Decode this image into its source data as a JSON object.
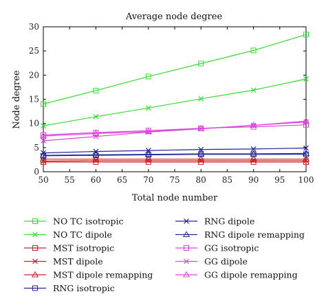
{
  "chart_data": {
    "type": "line",
    "title": "Average node degree",
    "xlabel": "Total node number",
    "ylabel": "Node degree",
    "xlim": [
      50,
      100
    ],
    "ylim": [
      0,
      30
    ],
    "xticks": [
      50,
      55,
      60,
      65,
      70,
      75,
      80,
      85,
      90,
      95,
      100
    ],
    "yticks": [
      0,
      5,
      10,
      15,
      20,
      25,
      30
    ],
    "grid": false,
    "legend_position": "bottom",
    "x": [
      50,
      60,
      70,
      80,
      90,
      100
    ],
    "series": [
      {
        "name": "NO TC isotropic",
        "color": "#33dd33",
        "marker": "square",
        "values": [
          14.0,
          16.8,
          19.7,
          22.4,
          25.1,
          28.4
        ]
      },
      {
        "name": "NO TC dipole",
        "color": "#33dd33",
        "marker": "x",
        "values": [
          9.5,
          11.4,
          13.2,
          15.1,
          16.9,
          19.2
        ]
      },
      {
        "name": "MST isotropic",
        "color": "#cc2222",
        "marker": "square",
        "values": [
          2.0,
          2.0,
          2.0,
          2.0,
          2.0,
          2.0
        ]
      },
      {
        "name": "MST dipole",
        "color": "#cc2222",
        "marker": "x",
        "values": [
          2.2,
          2.3,
          2.3,
          2.3,
          2.3,
          2.3
        ]
      },
      {
        "name": "MST dipole remapping",
        "color": "#cc2222",
        "marker": "triangle",
        "values": [
          2.6,
          2.6,
          2.6,
          2.6,
          2.6,
          2.6
        ]
      },
      {
        "name": "RNG isotropic",
        "color": "#222299",
        "marker": "square",
        "values": [
          3.3,
          3.4,
          3.5,
          3.6,
          3.6,
          3.6
        ]
      },
      {
        "name": "RNG dipole",
        "color": "#222299",
        "marker": "x",
        "values": [
          3.9,
          4.2,
          4.4,
          4.6,
          4.7,
          4.9
        ]
      },
      {
        "name": "RNG dipole remapping",
        "color": "#222299",
        "marker": "triangle",
        "values": [
          3.4,
          3.5,
          3.6,
          3.7,
          3.7,
          3.8
        ]
      },
      {
        "name": "GG isotropic",
        "color": "#dd44dd",
        "marker": "square",
        "values": [
          7.6,
          8.1,
          8.5,
          9.0,
          9.3,
          9.7
        ]
      },
      {
        "name": "GG dipole",
        "color": "#dd44dd",
        "marker": "x",
        "values": [
          6.4,
          7.3,
          8.2,
          8.9,
          9.6,
          10.3
        ]
      },
      {
        "name": "GG dipole remapping",
        "color": "#dd44dd",
        "marker": "triangle",
        "values": [
          7.4,
          7.9,
          8.3,
          8.9,
          9.6,
          10.5
        ]
      }
    ]
  }
}
